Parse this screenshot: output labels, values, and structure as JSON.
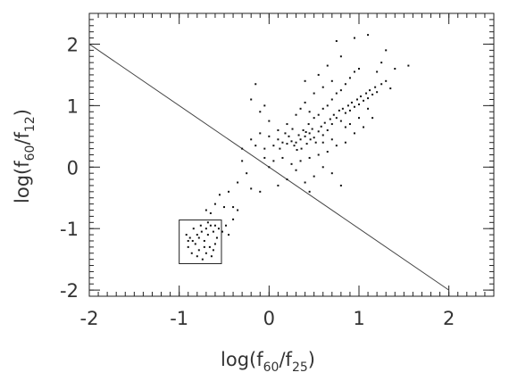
{
  "chart_data": {
    "type": "scatter",
    "xlabel": [
      "log(f",
      "60",
      "/f",
      "25",
      ")"
    ],
    "ylabel": [
      "log(f",
      "60",
      "/f",
      "12",
      ")"
    ],
    "xlim": [
      -2,
      2.5
    ],
    "ylim": [
      -2.1,
      2.5
    ],
    "xticks": [
      -2,
      -1,
      0,
      1,
      2
    ],
    "yticks": [
      -2,
      -1,
      0,
      1,
      2
    ],
    "minor_tick_step": 0.1,
    "color": "#111111",
    "line": {
      "x": [
        -2,
        2
      ],
      "y": [
        2,
        -2
      ]
    },
    "box": {
      "x": [
        -1,
        -0.53
      ],
      "y": [
        -1.57,
        -0.86
      ]
    },
    "x": [
      0.3,
      0.35,
      0.4,
      0.45,
      0.5,
      0.42,
      0.38,
      0.33,
      0.48,
      0.55,
      0.52,
      0.28,
      0.25,
      0.2,
      0.44,
      0.58,
      0.6,
      0.36,
      0.46,
      0.41,
      0.31,
      0.22,
      0.15,
      0.1,
      0.05,
      0.12,
      0.18,
      0.26,
      0.62,
      0.65,
      0.68,
      0.7,
      0.72,
      0.75,
      0.78,
      0.8,
      0.82,
      0.85,
      0.88,
      0.9,
      0.92,
      0.95,
      0.98,
      1.0,
      1.02,
      1.05,
      1.08,
      1.1,
      1.12,
      1.15,
      1.18,
      1.2,
      1.25,
      1.3,
      1.35,
      0.6,
      0.55,
      0.5,
      0.45,
      0.65,
      0.7,
      0.75,
      0.8,
      0.85,
      0.9,
      0.95,
      0.7,
      0.6,
      0.5,
      0.4,
      0.35,
      0.55,
      0.65,
      0.8,
      0.75,
      0.95,
      1.1,
      1.0,
      1.2,
      1.4,
      1.55,
      1.3,
      1.25,
      0.4,
      0.3,
      0.2,
      0.1,
      0.0,
      -0.05,
      -0.1,
      -0.15,
      -0.2,
      -0.05,
      0.05,
      0.15,
      0.25,
      0.35,
      0.45,
      0.55,
      0.65,
      0.75,
      0.85,
      0.95,
      1.05,
      1.15,
      0.6,
      0.5,
      0.7,
      0.4,
      0.8,
      0.3,
      0.2,
      0.1,
      0.0,
      0.45,
      0.7,
      0.85,
      1.0,
      1.1,
      0.9,
      0.6,
      -0.1,
      -0.2,
      -0.15,
      -0.05,
      0.0,
      -0.3,
      -0.25,
      -0.35,
      -0.45,
      -0.55,
      -0.6,
      -0.5,
      -0.65,
      -0.4,
      -0.7,
      -0.2,
      -0.1,
      -0.3,
      -0.9,
      -0.85,
      -0.8,
      -0.75,
      -0.7,
      -0.65,
      -0.6,
      -0.88,
      -0.82,
      -0.78,
      -0.72,
      -0.68,
      -0.62,
      -0.58,
      -0.92,
      -0.86,
      -0.8,
      -0.74,
      -0.7,
      -0.66,
      -0.6,
      -0.76,
      -0.84,
      -0.56,
      -0.9,
      -0.64,
      -0.78,
      -0.72,
      -0.62,
      -0.68,
      -0.52,
      -0.48,
      -0.45,
      -0.4,
      -0.35
    ],
    "values": [
      0.4,
      0.45,
      0.5,
      0.55,
      0.48,
      0.38,
      0.6,
      0.52,
      0.62,
      0.58,
      0.4,
      0.35,
      0.42,
      0.38,
      0.7,
      0.66,
      0.52,
      0.3,
      0.45,
      0.57,
      0.28,
      0.5,
      0.4,
      0.45,
      0.35,
      0.3,
      0.55,
      0.62,
      0.72,
      0.6,
      0.78,
      0.7,
      0.85,
      0.8,
      0.92,
      0.75,
      0.95,
      0.88,
      1.0,
      0.92,
      1.05,
      0.98,
      1.1,
      1.02,
      1.15,
      1.08,
      1.2,
      1.12,
      1.25,
      1.18,
      1.3,
      1.22,
      1.35,
      1.4,
      1.28,
      0.95,
      0.85,
      0.8,
      0.9,
      1.0,
      1.1,
      1.2,
      1.25,
      1.35,
      1.45,
      1.55,
      1.4,
      1.3,
      1.2,
      1.05,
      0.95,
      1.5,
      1.65,
      1.8,
      2.05,
      2.1,
      2.15,
      1.6,
      1.55,
      1.6,
      1.65,
      1.9,
      1.7,
      1.4,
      0.85,
      0.7,
      0.6,
      0.5,
      0.3,
      0.55,
      0.35,
      0.45,
      0.15,
      0.1,
      0.15,
      0.05,
      0.1,
      0.15,
      0.2,
      0.25,
      0.35,
      0.4,
      0.55,
      0.65,
      0.8,
      0.0,
      -0.15,
      -0.1,
      -0.25,
      -0.3,
      -0.05,
      -0.2,
      -0.3,
      0.0,
      -0.4,
      0.45,
      0.65,
      0.8,
      0.95,
      0.7,
      0.4,
      0.9,
      1.1,
      1.35,
      1.0,
      0.75,
      0.1,
      -0.1,
      -0.25,
      -0.4,
      -0.45,
      -0.6,
      -0.65,
      -0.75,
      -0.65,
      -0.7,
      -0.35,
      -0.4,
      0.3,
      -1.3,
      -1.2,
      -1.1,
      -1.05,
      -1.0,
      -0.95,
      -0.95,
      -1.15,
      -1.25,
      -1.35,
      -1.2,
      -1.1,
      -1.05,
      -1.15,
      -1.1,
      -1.4,
      -1.45,
      -1.5,
      -1.4,
      -1.3,
      -1.25,
      -0.95,
      -1.0,
      -1.0,
      -1.2,
      -1.45,
      -1.15,
      -1.3,
      -1.35,
      -0.9,
      -1.05,
      -0.95,
      -1.1,
      -0.85,
      -0.7
    ]
  }
}
